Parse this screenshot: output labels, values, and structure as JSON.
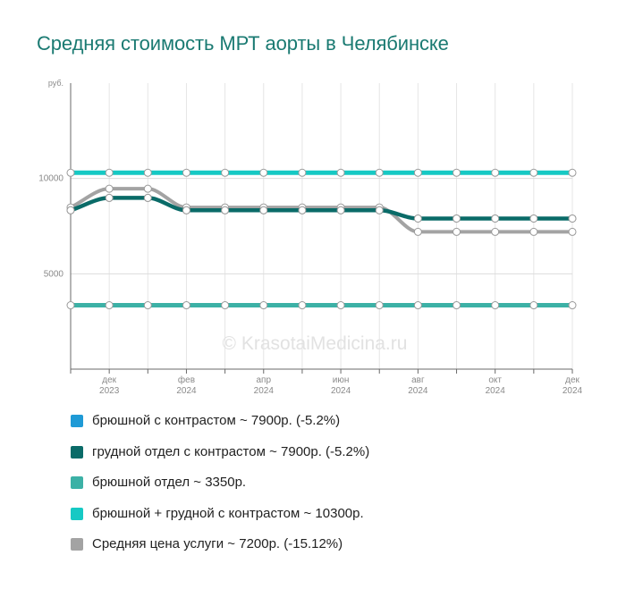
{
  "title": "Средняя стоимость МРТ аорты в Челябинске",
  "watermark": "© KrasotaiMedicina.ru",
  "chart_data": {
    "type": "line",
    "title": "Средняя стоимость МРТ аорты в Челябинске",
    "ylabel": "руб.",
    "ylim": [
      0,
      15000
    ],
    "y_ticks": [
      {
        "value": 5000,
        "label": "5000"
      },
      {
        "value": 10000,
        "label": "10000"
      }
    ],
    "x": [
      "2023-11",
      "2023-12",
      "2024-01",
      "2024-02",
      "2024-03",
      "2024-04",
      "2024-05",
      "2024-06",
      "2024-07",
      "2024-08",
      "2024-09",
      "2024-10",
      "2024-11",
      "2024-12"
    ],
    "x_tick_labels": [
      {
        "index": 1,
        "month": "дек",
        "year": "2023"
      },
      {
        "index": 3,
        "month": "фев",
        "year": "2024"
      },
      {
        "index": 5,
        "month": "апр",
        "year": "2024"
      },
      {
        "index": 7,
        "month": "июн",
        "year": "2024"
      },
      {
        "index": 9,
        "month": "авг",
        "year": "2024"
      },
      {
        "index": 11,
        "month": "окт",
        "year": "2024"
      },
      {
        "index": 13,
        "month": "дек",
        "year": "2024"
      }
    ],
    "grid": true,
    "legend_position": "bottom",
    "series": [
      {
        "name": "брюшной с контрастом ~ 7900р. (-5.2%)",
        "color": "#1f9ad6",
        "width": 0,
        "values": [
          8330,
          8980,
          8980,
          8330,
          8330,
          8330,
          8330,
          8330,
          8330,
          7900,
          7900,
          7900,
          7900,
          7900
        ]
      },
      {
        "name": "грудной отдел с контрастом ~ 7900р. (-5.2%)",
        "color": "#0a6b68",
        "width": 4.5,
        "values": [
          8330,
          8980,
          8980,
          8330,
          8330,
          8330,
          8330,
          8330,
          8330,
          7900,
          7900,
          7900,
          7900,
          7900
        ]
      },
      {
        "name": "брюшной отдел ~ 3350р.",
        "color": "#3cb1a6",
        "width": 5,
        "values": [
          3350,
          3350,
          3350,
          3350,
          3350,
          3350,
          3350,
          3350,
          3350,
          3350,
          3350,
          3350,
          3350,
          3350
        ]
      },
      {
        "name": "брюшной + грудной с контрастом ~ 10300р.",
        "color": "#16c9c4",
        "width": 5,
        "values": [
          10300,
          10300,
          10300,
          10300,
          10300,
          10300,
          10300,
          10300,
          10300,
          10300,
          10300,
          10300,
          10300,
          10300
        ]
      },
      {
        "name": "Средняя цена услуги ~ 7200р. (-15.12%)",
        "color": "#a3a3a3",
        "width": 4,
        "values": [
          8480,
          9460,
          9460,
          8480,
          8480,
          8480,
          8480,
          8480,
          8480,
          7200,
          7200,
          7200,
          7200,
          7200
        ]
      }
    ]
  }
}
